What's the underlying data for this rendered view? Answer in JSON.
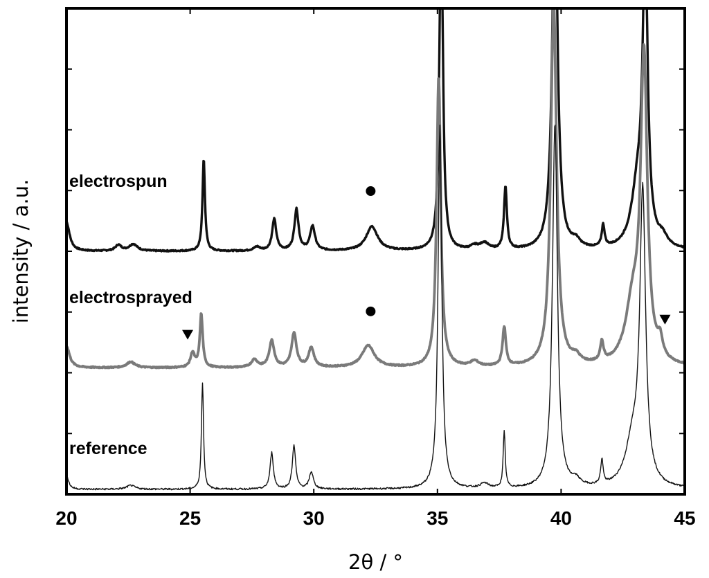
{
  "chart_data": {
    "type": "line",
    "title": "",
    "xlabel": "2θ / °",
    "ylabel": "intensity / a.u.",
    "xlim": [
      20,
      45
    ],
    "ylim": [
      0,
      100
    ],
    "x_ticks": [
      20,
      25,
      30,
      35,
      40,
      45
    ],
    "y_ticks_labeled": false,
    "grid": false,
    "legend": "none",
    "colors": {
      "electrospun": "#111111",
      "electrosprayed": "#7a7a7a",
      "reference": "#111111"
    },
    "series": [
      {
        "name": "electrospun",
        "baseline": 50,
        "peaks": [
          [
            20.0,
            6,
            0.15
          ],
          [
            22.1,
            1.2,
            0.15
          ],
          [
            22.7,
            1.4,
            0.2
          ],
          [
            25.55,
            19,
            0.06
          ],
          [
            27.7,
            0.8,
            0.15
          ],
          [
            28.4,
            6.5,
            0.1
          ],
          [
            29.3,
            8.5,
            0.1
          ],
          [
            29.95,
            5,
            0.12
          ],
          [
            32.35,
            5,
            0.28
          ],
          [
            35.15,
            75,
            0.08
          ],
          [
            36.5,
            0.8,
            0.2
          ],
          [
            36.9,
            1.4,
            0.2
          ],
          [
            37.75,
            13,
            0.07
          ],
          [
            39.75,
            75,
            0.13
          ],
          [
            40.6,
            1.4,
            0.2
          ],
          [
            41.7,
            4.5,
            0.07
          ],
          [
            43.1,
            12,
            0.3
          ],
          [
            43.4,
            60,
            0.12
          ],
          [
            44.1,
            2,
            0.25
          ]
        ]
      },
      {
        "name": "electrosprayed",
        "baseline": 26,
        "peaks": [
          [
            20.0,
            4.5,
            0.15
          ],
          [
            22.6,
            1.2,
            0.2
          ],
          [
            25.1,
            3,
            0.1
          ],
          [
            25.45,
            11,
            0.07
          ],
          [
            27.6,
            1.6,
            0.15
          ],
          [
            28.3,
            5.5,
            0.12
          ],
          [
            29.2,
            7,
            0.12
          ],
          [
            29.9,
            4,
            0.13
          ],
          [
            32.2,
            4.5,
            0.3
          ],
          [
            35.05,
            60,
            0.1
          ],
          [
            36.5,
            1.1,
            0.2
          ],
          [
            37.7,
            8,
            0.08
          ],
          [
            39.7,
            75,
            0.14
          ],
          [
            40.6,
            1.4,
            0.2
          ],
          [
            41.65,
            4,
            0.08
          ],
          [
            42.9,
            12,
            0.35
          ],
          [
            43.35,
            62,
            0.16
          ],
          [
            44.0,
            3.5,
            0.12
          ]
        ]
      },
      {
        "name": "reference",
        "baseline": 1,
        "peaks": [
          [
            20.0,
            3,
            0.1
          ],
          [
            22.6,
            0.8,
            0.2
          ],
          [
            25.5,
            22,
            0.05
          ],
          [
            28.3,
            7.5,
            0.08
          ],
          [
            29.2,
            9,
            0.08
          ],
          [
            29.9,
            3.5,
            0.1
          ],
          [
            35.1,
            75,
            0.09
          ],
          [
            36.9,
            1,
            0.2
          ],
          [
            37.7,
            11.5,
            0.05
          ],
          [
            39.75,
            75,
            0.12
          ],
          [
            40.6,
            1.3,
            0.2
          ],
          [
            41.65,
            5,
            0.06
          ],
          [
            42.9,
            9,
            0.35
          ],
          [
            43.3,
            59,
            0.14
          ]
        ]
      }
    ],
    "series_labels": [
      "electrospun",
      "electrosprayed",
      "reference"
    ],
    "annotations": [
      {
        "series": "electrospun",
        "symbol": "circle",
        "x": 32.3
      },
      {
        "series": "electrosprayed",
        "symbol": "circle",
        "x": 32.3
      },
      {
        "series": "electrosprayed",
        "symbol": "triangle-down",
        "x": 24.9
      },
      {
        "series": "electrosprayed",
        "symbol": "triangle-down",
        "x": 44.2
      }
    ]
  }
}
